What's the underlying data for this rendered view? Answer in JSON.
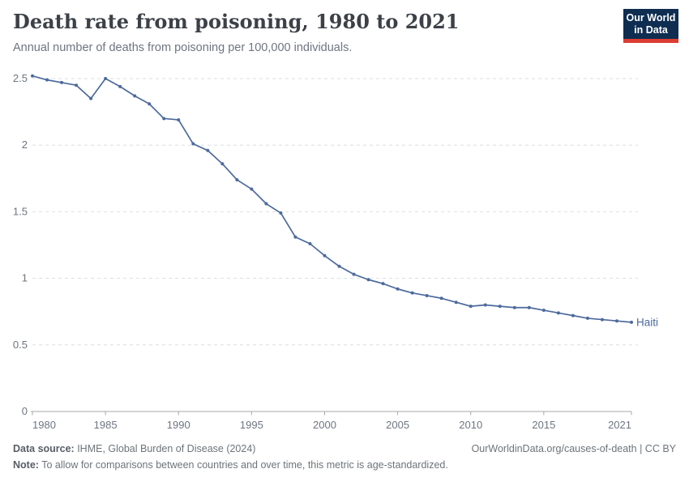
{
  "header": {
    "title": "Death rate from poisoning, 1980 to 2021",
    "subtitle": "Annual number of deaths from poisoning per 100,000 individuals.",
    "logo_line1": "Our World",
    "logo_line2": "in Data"
  },
  "chart_data": {
    "type": "line",
    "title": "Death rate from poisoning, 1980 to 2021",
    "subtitle": "Annual number of deaths from poisoning per 100,000 individuals.",
    "xlabel": "",
    "ylabel": "",
    "xlim": [
      1980,
      2021
    ],
    "ylim": [
      0,
      2.5
    ],
    "grid": "horizontal-dashed",
    "legend": "end-of-line-label",
    "x": [
      1980,
      1981,
      1982,
      1983,
      1984,
      1985,
      1986,
      1987,
      1988,
      1989,
      1990,
      1991,
      1992,
      1993,
      1994,
      1995,
      1996,
      1997,
      1998,
      1999,
      2000,
      2001,
      2002,
      2003,
      2004,
      2005,
      2006,
      2007,
      2008,
      2009,
      2010,
      2011,
      2012,
      2013,
      2014,
      2015,
      2016,
      2017,
      2018,
      2019,
      2020,
      2021
    ],
    "series": [
      {
        "name": "Haiti",
        "color": "#4c6a9c",
        "values": [
          2.52,
          2.49,
          2.47,
          2.45,
          2.35,
          2.5,
          2.44,
          2.37,
          2.31,
          2.2,
          2.19,
          2.01,
          1.96,
          1.86,
          1.74,
          1.67,
          1.56,
          1.49,
          1.31,
          1.26,
          1.17,
          1.09,
          1.03,
          0.99,
          0.96,
          0.92,
          0.89,
          0.87,
          0.85,
          0.82,
          0.79,
          0.8,
          0.79,
          0.78,
          0.78,
          0.76,
          0.74,
          0.72,
          0.7,
          0.69,
          0.68,
          0.67
        ]
      }
    ],
    "xticks": [
      {
        "value": 1980,
        "label": "1980"
      },
      {
        "value": 1985,
        "label": "1985"
      },
      {
        "value": 1990,
        "label": "1990"
      },
      {
        "value": 1995,
        "label": "1995"
      },
      {
        "value": 2000,
        "label": "2000"
      },
      {
        "value": 2005,
        "label": "2005"
      },
      {
        "value": 2010,
        "label": "2010"
      },
      {
        "value": 2015,
        "label": "2015"
      },
      {
        "value": 2021,
        "label": "2021"
      }
    ],
    "yticks": [
      {
        "value": 0,
        "label": "0"
      },
      {
        "value": 0.5,
        "label": "0.5"
      },
      {
        "value": 1,
        "label": "1"
      },
      {
        "value": 1.5,
        "label": "1.5"
      },
      {
        "value": 2,
        "label": "2"
      },
      {
        "value": 2.5,
        "label": "2.5"
      }
    ]
  },
  "footer": {
    "source_label": "Data source:",
    "source_text": " IHME, Global Burden of Disease (2024)",
    "link_text": "OurWorldinData.org/causes-of-death | CC BY",
    "note_label": "Note:",
    "note_text": " To allow for comparisons between countries and over time, this metric is age-standardized."
  },
  "colors": {
    "line": "#4c6a9c",
    "grid": "#dcdee0",
    "axis": "#a5a9ad",
    "tick_label": "#6e7581",
    "title": "#3c4148",
    "subtitle": "#6e7581",
    "footer": "#6d7479",
    "footer_bold": "#585e66",
    "logo_bg": "#0e2d51",
    "logo_accent": "#dc3d33"
  }
}
